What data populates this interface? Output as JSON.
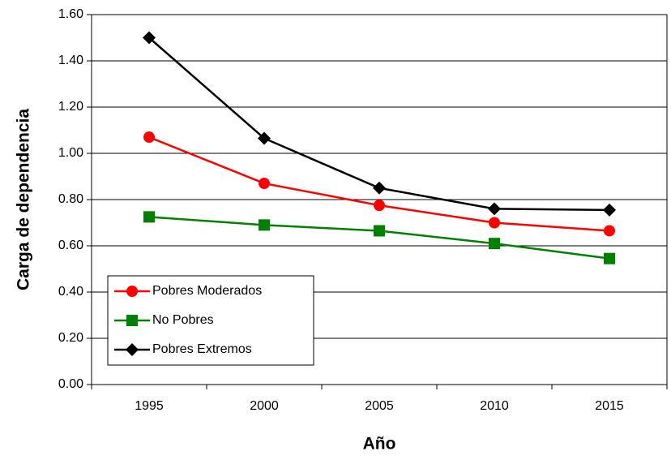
{
  "chart_data": {
    "type": "line",
    "x_label": "Año",
    "y_label": "Carga de dependencia",
    "categories": [
      "1995",
      "2000",
      "2005",
      "2010",
      "2015"
    ],
    "series": [
      {
        "name": "Pobres Moderados",
        "color": "#ff0000",
        "marker": "circle",
        "values": [
          1.07,
          0.87,
          0.775,
          0.7,
          0.665
        ]
      },
      {
        "name": "No Pobres",
        "color": "#008000",
        "marker": "square",
        "values": [
          0.725,
          0.69,
          0.665,
          0.61,
          0.545
        ]
      },
      {
        "name": "Pobres Extremos",
        "color": "#000000",
        "marker": "diamond",
        "values": [
          1.5,
          1.065,
          0.85,
          0.76,
          0.755
        ]
      }
    ],
    "ylim": [
      0,
      1.6
    ],
    "yticks": [
      {
        "value": 0,
        "label": "0.00"
      },
      {
        "value": 0.2,
        "label": "0.20"
      },
      {
        "value": 0.4,
        "label": "0.40"
      },
      {
        "value": 0.6,
        "label": "0.60"
      },
      {
        "value": 0.8,
        "label": "0.80"
      },
      {
        "value": 1.0,
        "label": "1.00"
      },
      {
        "value": 1.2,
        "label": "1.20"
      },
      {
        "value": 1.4,
        "label": "1.40"
      },
      {
        "value": 1.6,
        "label": "1.60"
      }
    ],
    "grid": true,
    "legend": "lower left"
  }
}
